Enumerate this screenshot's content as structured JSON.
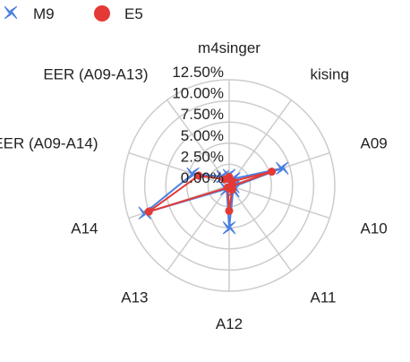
{
  "chart_data": {
    "type": "radar",
    "categories": [
      "m4singer",
      "kising",
      "A09",
      "A10",
      "A11",
      "A12",
      "A13",
      "A14",
      "EER (A09-A14)",
      "EER (A09-A13)"
    ],
    "series": [
      {
        "name": "M9",
        "values": [
          1.2,
          1.0,
          6.6,
          0.5,
          0.8,
          5.0,
          0.5,
          10.5,
          4.5,
          1.3
        ],
        "color": "#4a7fe0",
        "marker": "x-star"
      },
      {
        "name": "E5",
        "values": [
          1.0,
          0.6,
          5.3,
          0.3,
          0.6,
          3.0,
          0.3,
          10.0,
          3.8,
          0.9
        ],
        "color": "#e53935",
        "marker": "circle"
      }
    ],
    "r_ticks": [
      0,
      2.5,
      5.0,
      7.5,
      10.0,
      12.5
    ],
    "r_tick_labels": [
      "0.00%",
      "2.50%",
      "5.00%",
      "7.50%",
      "10.00%",
      "12.50%"
    ],
    "r_range": [
      0,
      12.5
    ],
    "grid": true,
    "legend": "top-left"
  }
}
